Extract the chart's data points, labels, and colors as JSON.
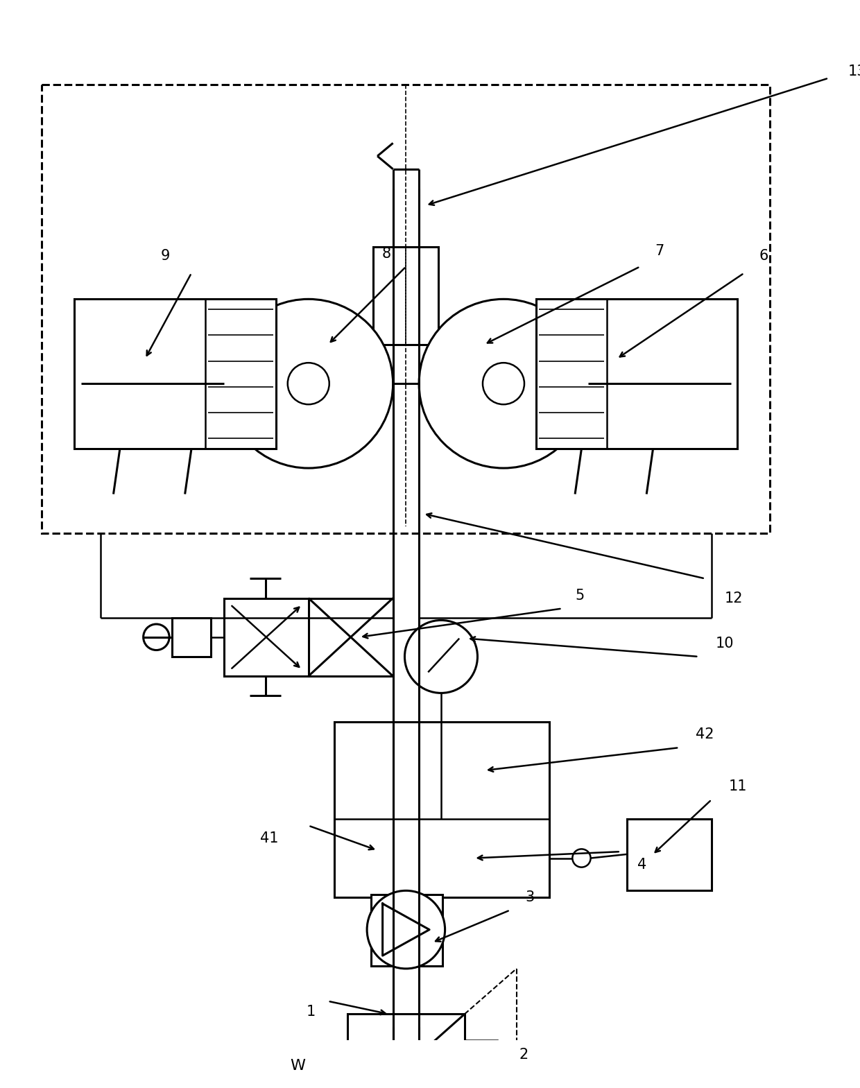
{
  "bg_color": "#ffffff",
  "lc": "#000000",
  "lw": 1.8,
  "lw2": 2.2,
  "figsize": [
    12.4,
    15.69
  ],
  "dpi": 100
}
